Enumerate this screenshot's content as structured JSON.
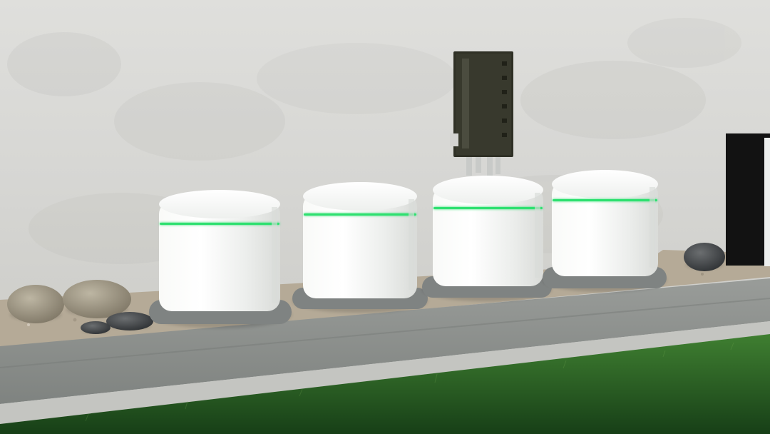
{
  "scene": {
    "colors": {
      "wall": "#d7d7d4",
      "wall_shadow": "#c6c6c2",
      "gravel": "#b6ab99",
      "pavement": "#8f9290",
      "curb": "#c8c9c5",
      "grass_dark": "#1f4f20",
      "grass_light": "#3d7a2c",
      "battery_white": "#f2f3f1",
      "battery_shadow": "#d9dbd8",
      "base_gray": "#7f8382",
      "status_green": "#2de06f",
      "panel_dark": "#2d2f24",
      "inverter_black": "#121212"
    },
    "objects": {
      "batteries": [
        {
          "name": "battery-unit-1"
        },
        {
          "name": "battery-unit-2"
        },
        {
          "name": "battery-unit-3"
        },
        {
          "name": "battery-unit-4"
        }
      ],
      "rocks": [
        {
          "name": "rock-1"
        },
        {
          "name": "rock-2"
        },
        {
          "name": "rock-3"
        },
        {
          "name": "rock-4"
        },
        {
          "name": "rock-5"
        }
      ]
    }
  }
}
